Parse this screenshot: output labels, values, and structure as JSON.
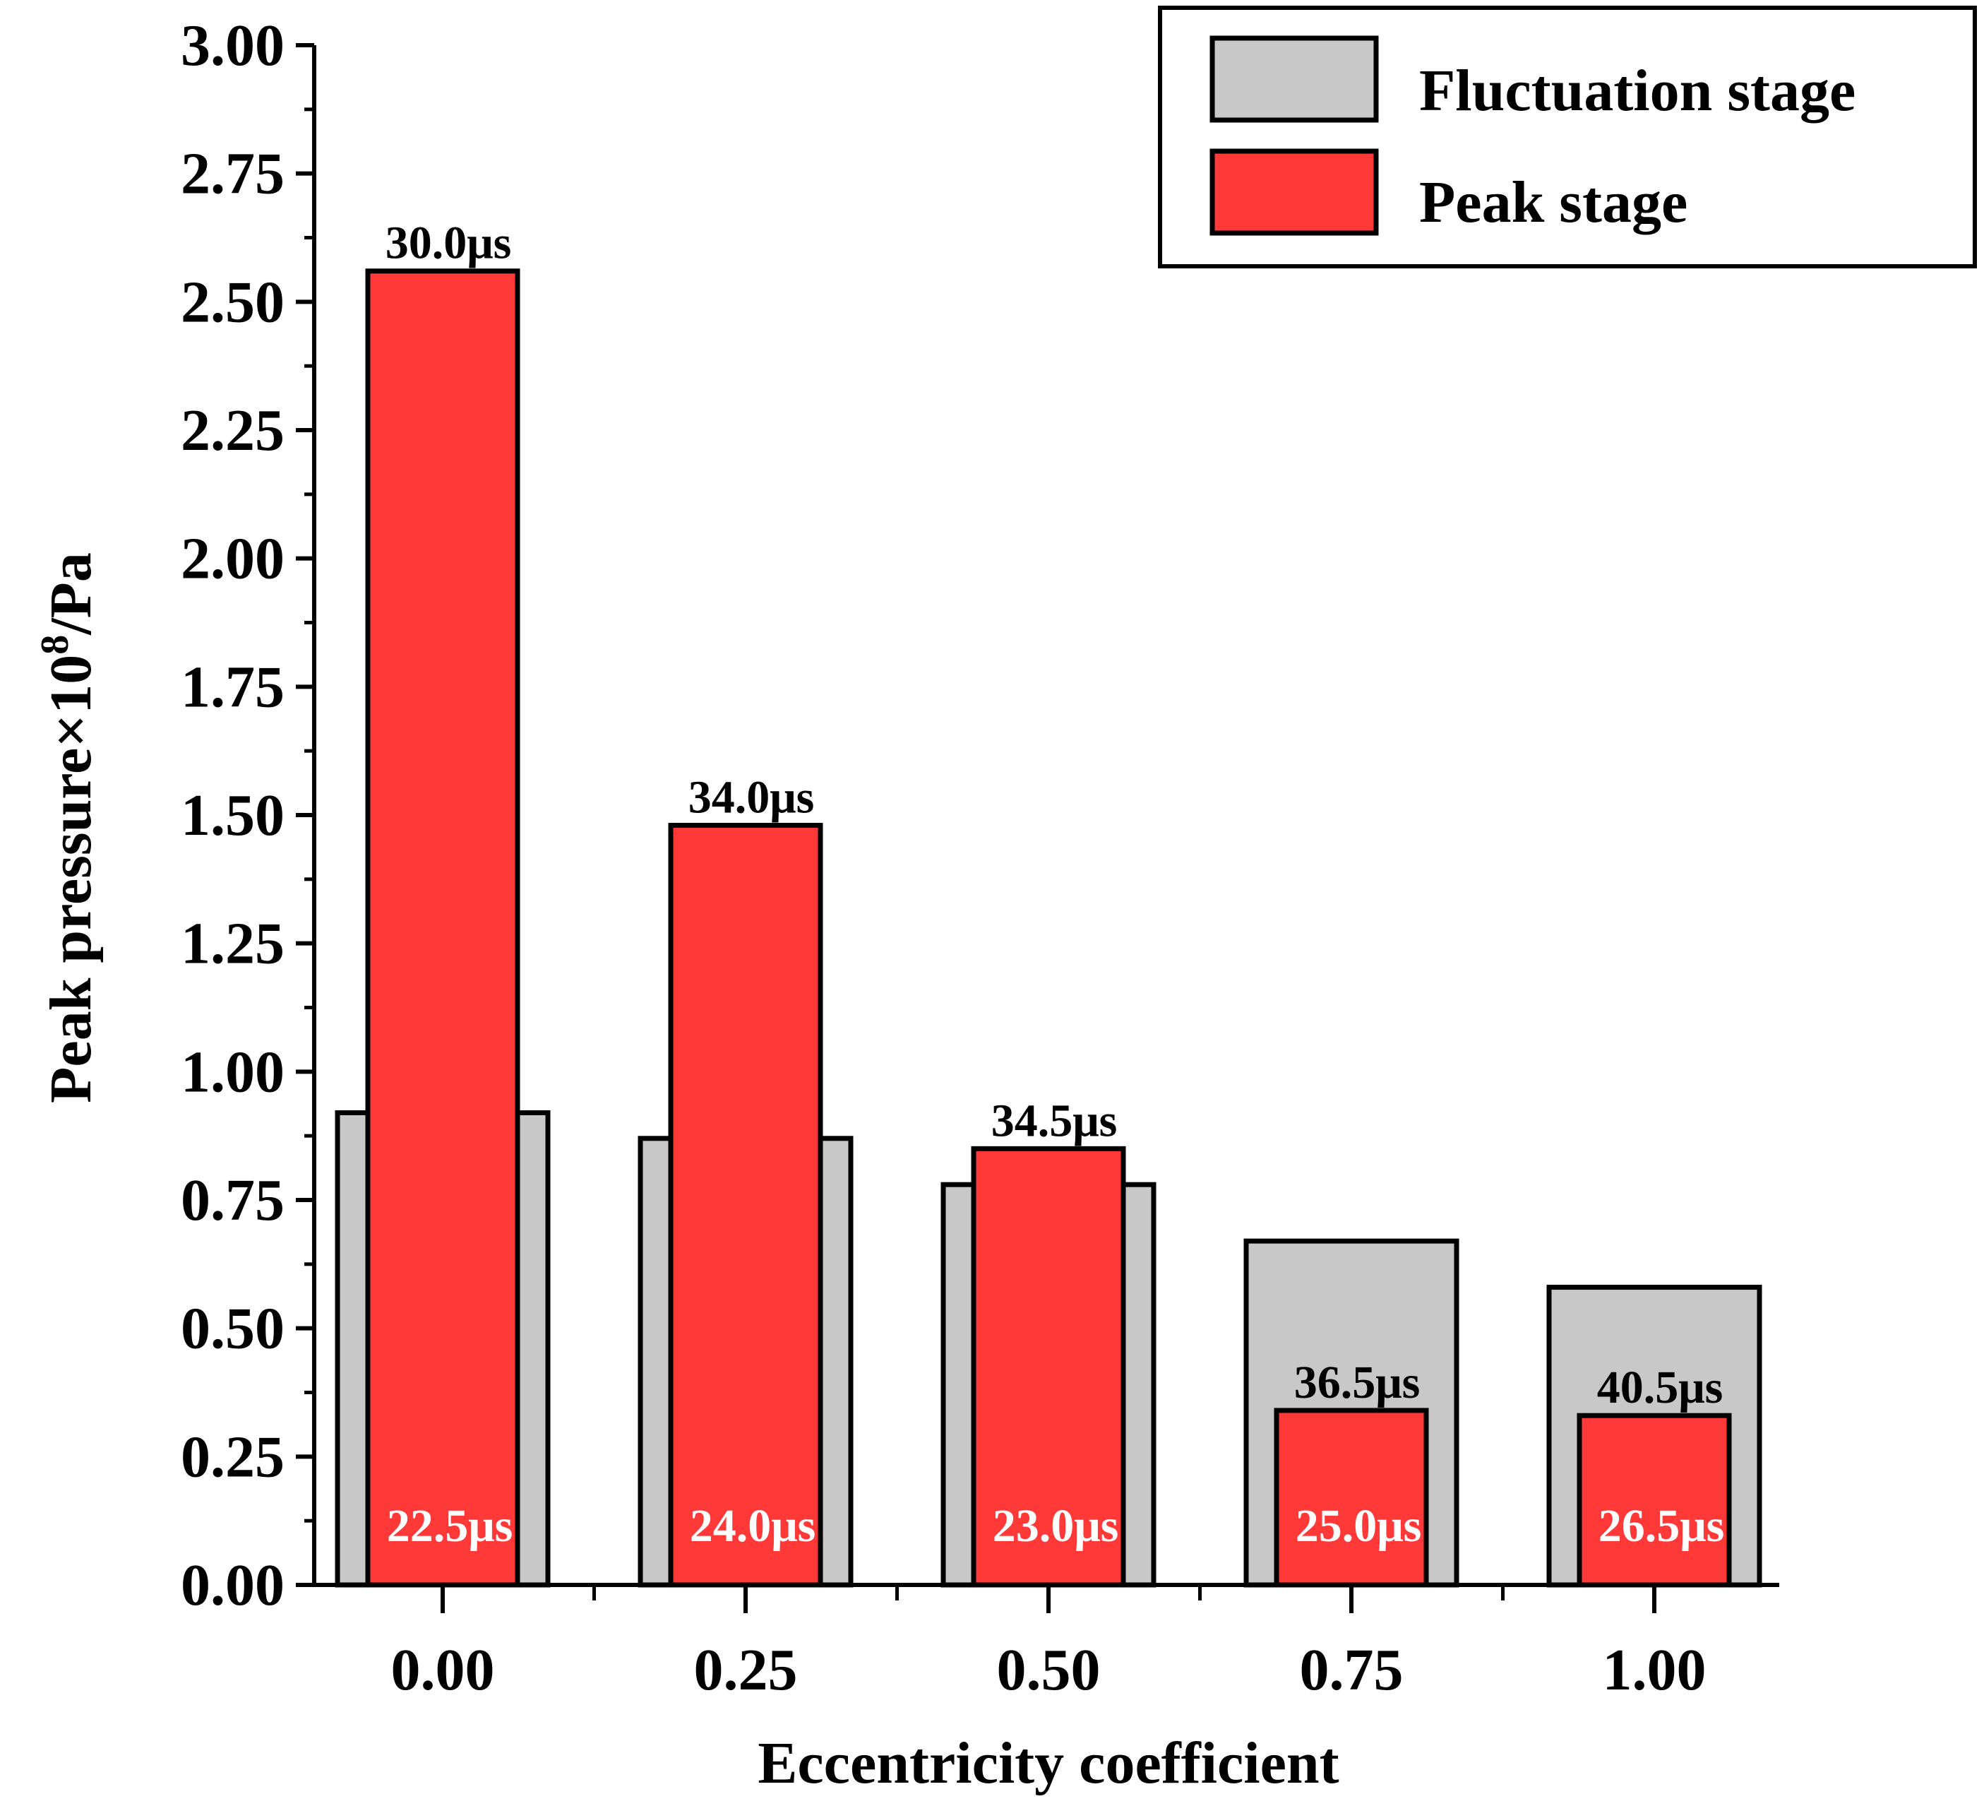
{
  "chart_data": {
    "type": "bar",
    "title": "",
    "xlabel": "Eccentricity coefficient",
    "ylabel": {
      "main": "Peak pressure×10",
      "exponent": "8",
      "unit": "/Pa"
    },
    "ylim": [
      0,
      3
    ],
    "yticks": [
      "0.00",
      "0.25",
      "0.50",
      "0.75",
      "1.00",
      "1.25",
      "1.50",
      "1.75",
      "2.00",
      "2.25",
      "2.50",
      "2.75",
      "3.00"
    ],
    "categories": [
      "0.00",
      "0.25",
      "0.50",
      "0.75",
      "1.00"
    ],
    "legend_position": "top-right",
    "series": [
      {
        "name": "Fluctuation stage",
        "color": "#c8c8c8",
        "values": [
          0.92,
          0.87,
          0.78,
          0.67,
          0.58
        ],
        "time_labels": [
          "22.5μs",
          "24.0μs",
          "23.0μs",
          "25.0μs",
          "26.5μs"
        ]
      },
      {
        "name": "Peak stage",
        "color": "#ff3838",
        "values": [
          2.56,
          1.48,
          0.85,
          0.34,
          0.33
        ],
        "time_labels": [
          "30.0μs",
          "34.0μs",
          "34.5μs",
          "36.5μs",
          "40.5μs"
        ]
      }
    ]
  }
}
